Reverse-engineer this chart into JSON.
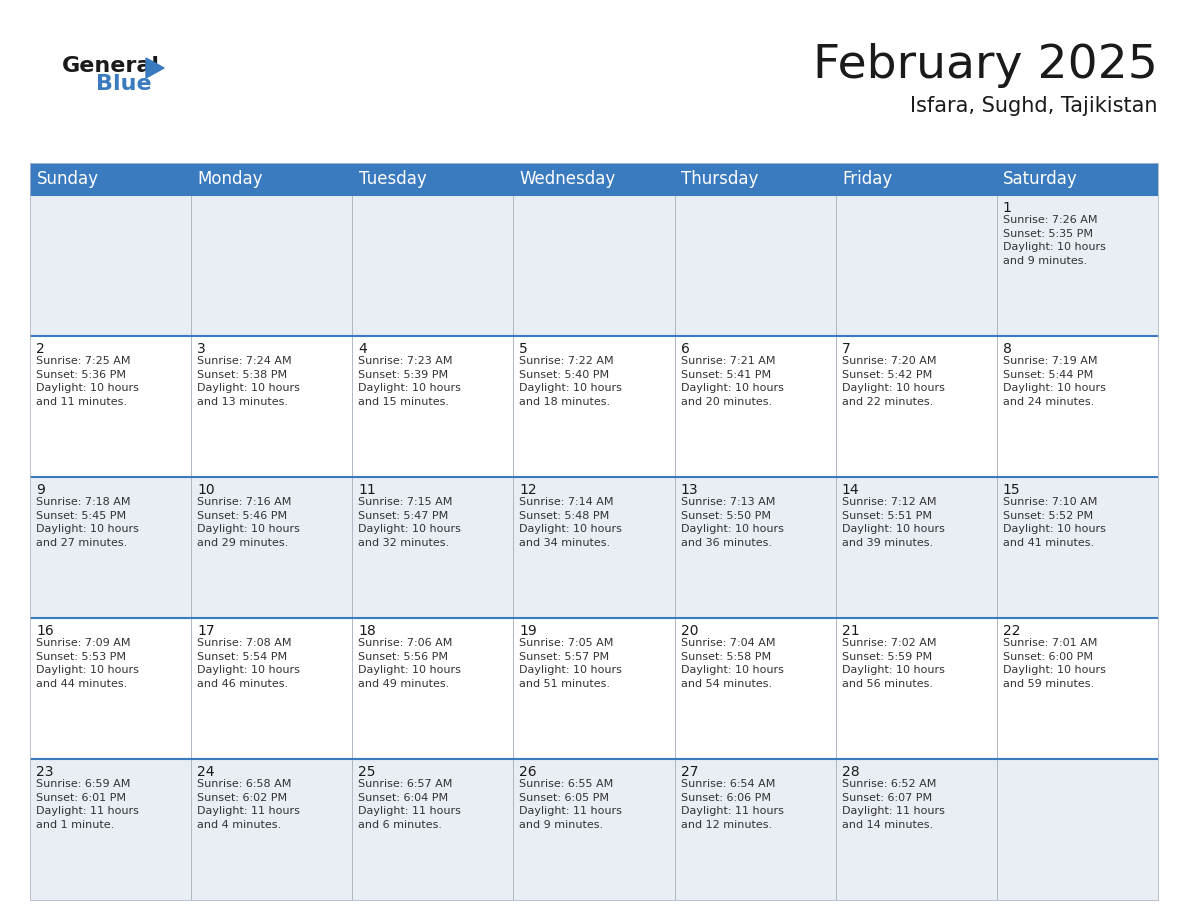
{
  "title": "February 2025",
  "subtitle": "Isfara, Sughd, Tajikistan",
  "header_color": "#3a7abf",
  "header_text_color": "#ffffff",
  "cell_bg_even": "#e8eef4",
  "cell_bg_odd": "#ffffff",
  "day_headers": [
    "Sunday",
    "Monday",
    "Tuesday",
    "Wednesday",
    "Thursday",
    "Friday",
    "Saturday"
  ],
  "title_fontsize": 34,
  "subtitle_fontsize": 15,
  "header_fontsize": 12,
  "day_num_fontsize": 10,
  "cell_text_fontsize": 8.0,
  "logo_text1": "General",
  "logo_text2": "Blue",
  "calendar_data": [
    [
      {
        "day": "",
        "info": ""
      },
      {
        "day": "",
        "info": ""
      },
      {
        "day": "",
        "info": ""
      },
      {
        "day": "",
        "info": ""
      },
      {
        "day": "",
        "info": ""
      },
      {
        "day": "",
        "info": ""
      },
      {
        "day": "1",
        "info": "Sunrise: 7:26 AM\nSunset: 5:35 PM\nDaylight: 10 hours\nand 9 minutes."
      }
    ],
    [
      {
        "day": "2",
        "info": "Sunrise: 7:25 AM\nSunset: 5:36 PM\nDaylight: 10 hours\nand 11 minutes."
      },
      {
        "day": "3",
        "info": "Sunrise: 7:24 AM\nSunset: 5:38 PM\nDaylight: 10 hours\nand 13 minutes."
      },
      {
        "day": "4",
        "info": "Sunrise: 7:23 AM\nSunset: 5:39 PM\nDaylight: 10 hours\nand 15 minutes."
      },
      {
        "day": "5",
        "info": "Sunrise: 7:22 AM\nSunset: 5:40 PM\nDaylight: 10 hours\nand 18 minutes."
      },
      {
        "day": "6",
        "info": "Sunrise: 7:21 AM\nSunset: 5:41 PM\nDaylight: 10 hours\nand 20 minutes."
      },
      {
        "day": "7",
        "info": "Sunrise: 7:20 AM\nSunset: 5:42 PM\nDaylight: 10 hours\nand 22 minutes."
      },
      {
        "day": "8",
        "info": "Sunrise: 7:19 AM\nSunset: 5:44 PM\nDaylight: 10 hours\nand 24 minutes."
      }
    ],
    [
      {
        "day": "9",
        "info": "Sunrise: 7:18 AM\nSunset: 5:45 PM\nDaylight: 10 hours\nand 27 minutes."
      },
      {
        "day": "10",
        "info": "Sunrise: 7:16 AM\nSunset: 5:46 PM\nDaylight: 10 hours\nand 29 minutes."
      },
      {
        "day": "11",
        "info": "Sunrise: 7:15 AM\nSunset: 5:47 PM\nDaylight: 10 hours\nand 32 minutes."
      },
      {
        "day": "12",
        "info": "Sunrise: 7:14 AM\nSunset: 5:48 PM\nDaylight: 10 hours\nand 34 minutes."
      },
      {
        "day": "13",
        "info": "Sunrise: 7:13 AM\nSunset: 5:50 PM\nDaylight: 10 hours\nand 36 minutes."
      },
      {
        "day": "14",
        "info": "Sunrise: 7:12 AM\nSunset: 5:51 PM\nDaylight: 10 hours\nand 39 minutes."
      },
      {
        "day": "15",
        "info": "Sunrise: 7:10 AM\nSunset: 5:52 PM\nDaylight: 10 hours\nand 41 minutes."
      }
    ],
    [
      {
        "day": "16",
        "info": "Sunrise: 7:09 AM\nSunset: 5:53 PM\nDaylight: 10 hours\nand 44 minutes."
      },
      {
        "day": "17",
        "info": "Sunrise: 7:08 AM\nSunset: 5:54 PM\nDaylight: 10 hours\nand 46 minutes."
      },
      {
        "day": "18",
        "info": "Sunrise: 7:06 AM\nSunset: 5:56 PM\nDaylight: 10 hours\nand 49 minutes."
      },
      {
        "day": "19",
        "info": "Sunrise: 7:05 AM\nSunset: 5:57 PM\nDaylight: 10 hours\nand 51 minutes."
      },
      {
        "day": "20",
        "info": "Sunrise: 7:04 AM\nSunset: 5:58 PM\nDaylight: 10 hours\nand 54 minutes."
      },
      {
        "day": "21",
        "info": "Sunrise: 7:02 AM\nSunset: 5:59 PM\nDaylight: 10 hours\nand 56 minutes."
      },
      {
        "day": "22",
        "info": "Sunrise: 7:01 AM\nSunset: 6:00 PM\nDaylight: 10 hours\nand 59 minutes."
      }
    ],
    [
      {
        "day": "23",
        "info": "Sunrise: 6:59 AM\nSunset: 6:01 PM\nDaylight: 11 hours\nand 1 minute."
      },
      {
        "day": "24",
        "info": "Sunrise: 6:58 AM\nSunset: 6:02 PM\nDaylight: 11 hours\nand 4 minutes."
      },
      {
        "day": "25",
        "info": "Sunrise: 6:57 AM\nSunset: 6:04 PM\nDaylight: 11 hours\nand 6 minutes."
      },
      {
        "day": "26",
        "info": "Sunrise: 6:55 AM\nSunset: 6:05 PM\nDaylight: 11 hours\nand 9 minutes."
      },
      {
        "day": "27",
        "info": "Sunrise: 6:54 AM\nSunset: 6:06 PM\nDaylight: 11 hours\nand 12 minutes."
      },
      {
        "day": "28",
        "info": "Sunrise: 6:52 AM\nSunset: 6:07 PM\nDaylight: 11 hours\nand 14 minutes."
      },
      {
        "day": "",
        "info": ""
      }
    ]
  ]
}
